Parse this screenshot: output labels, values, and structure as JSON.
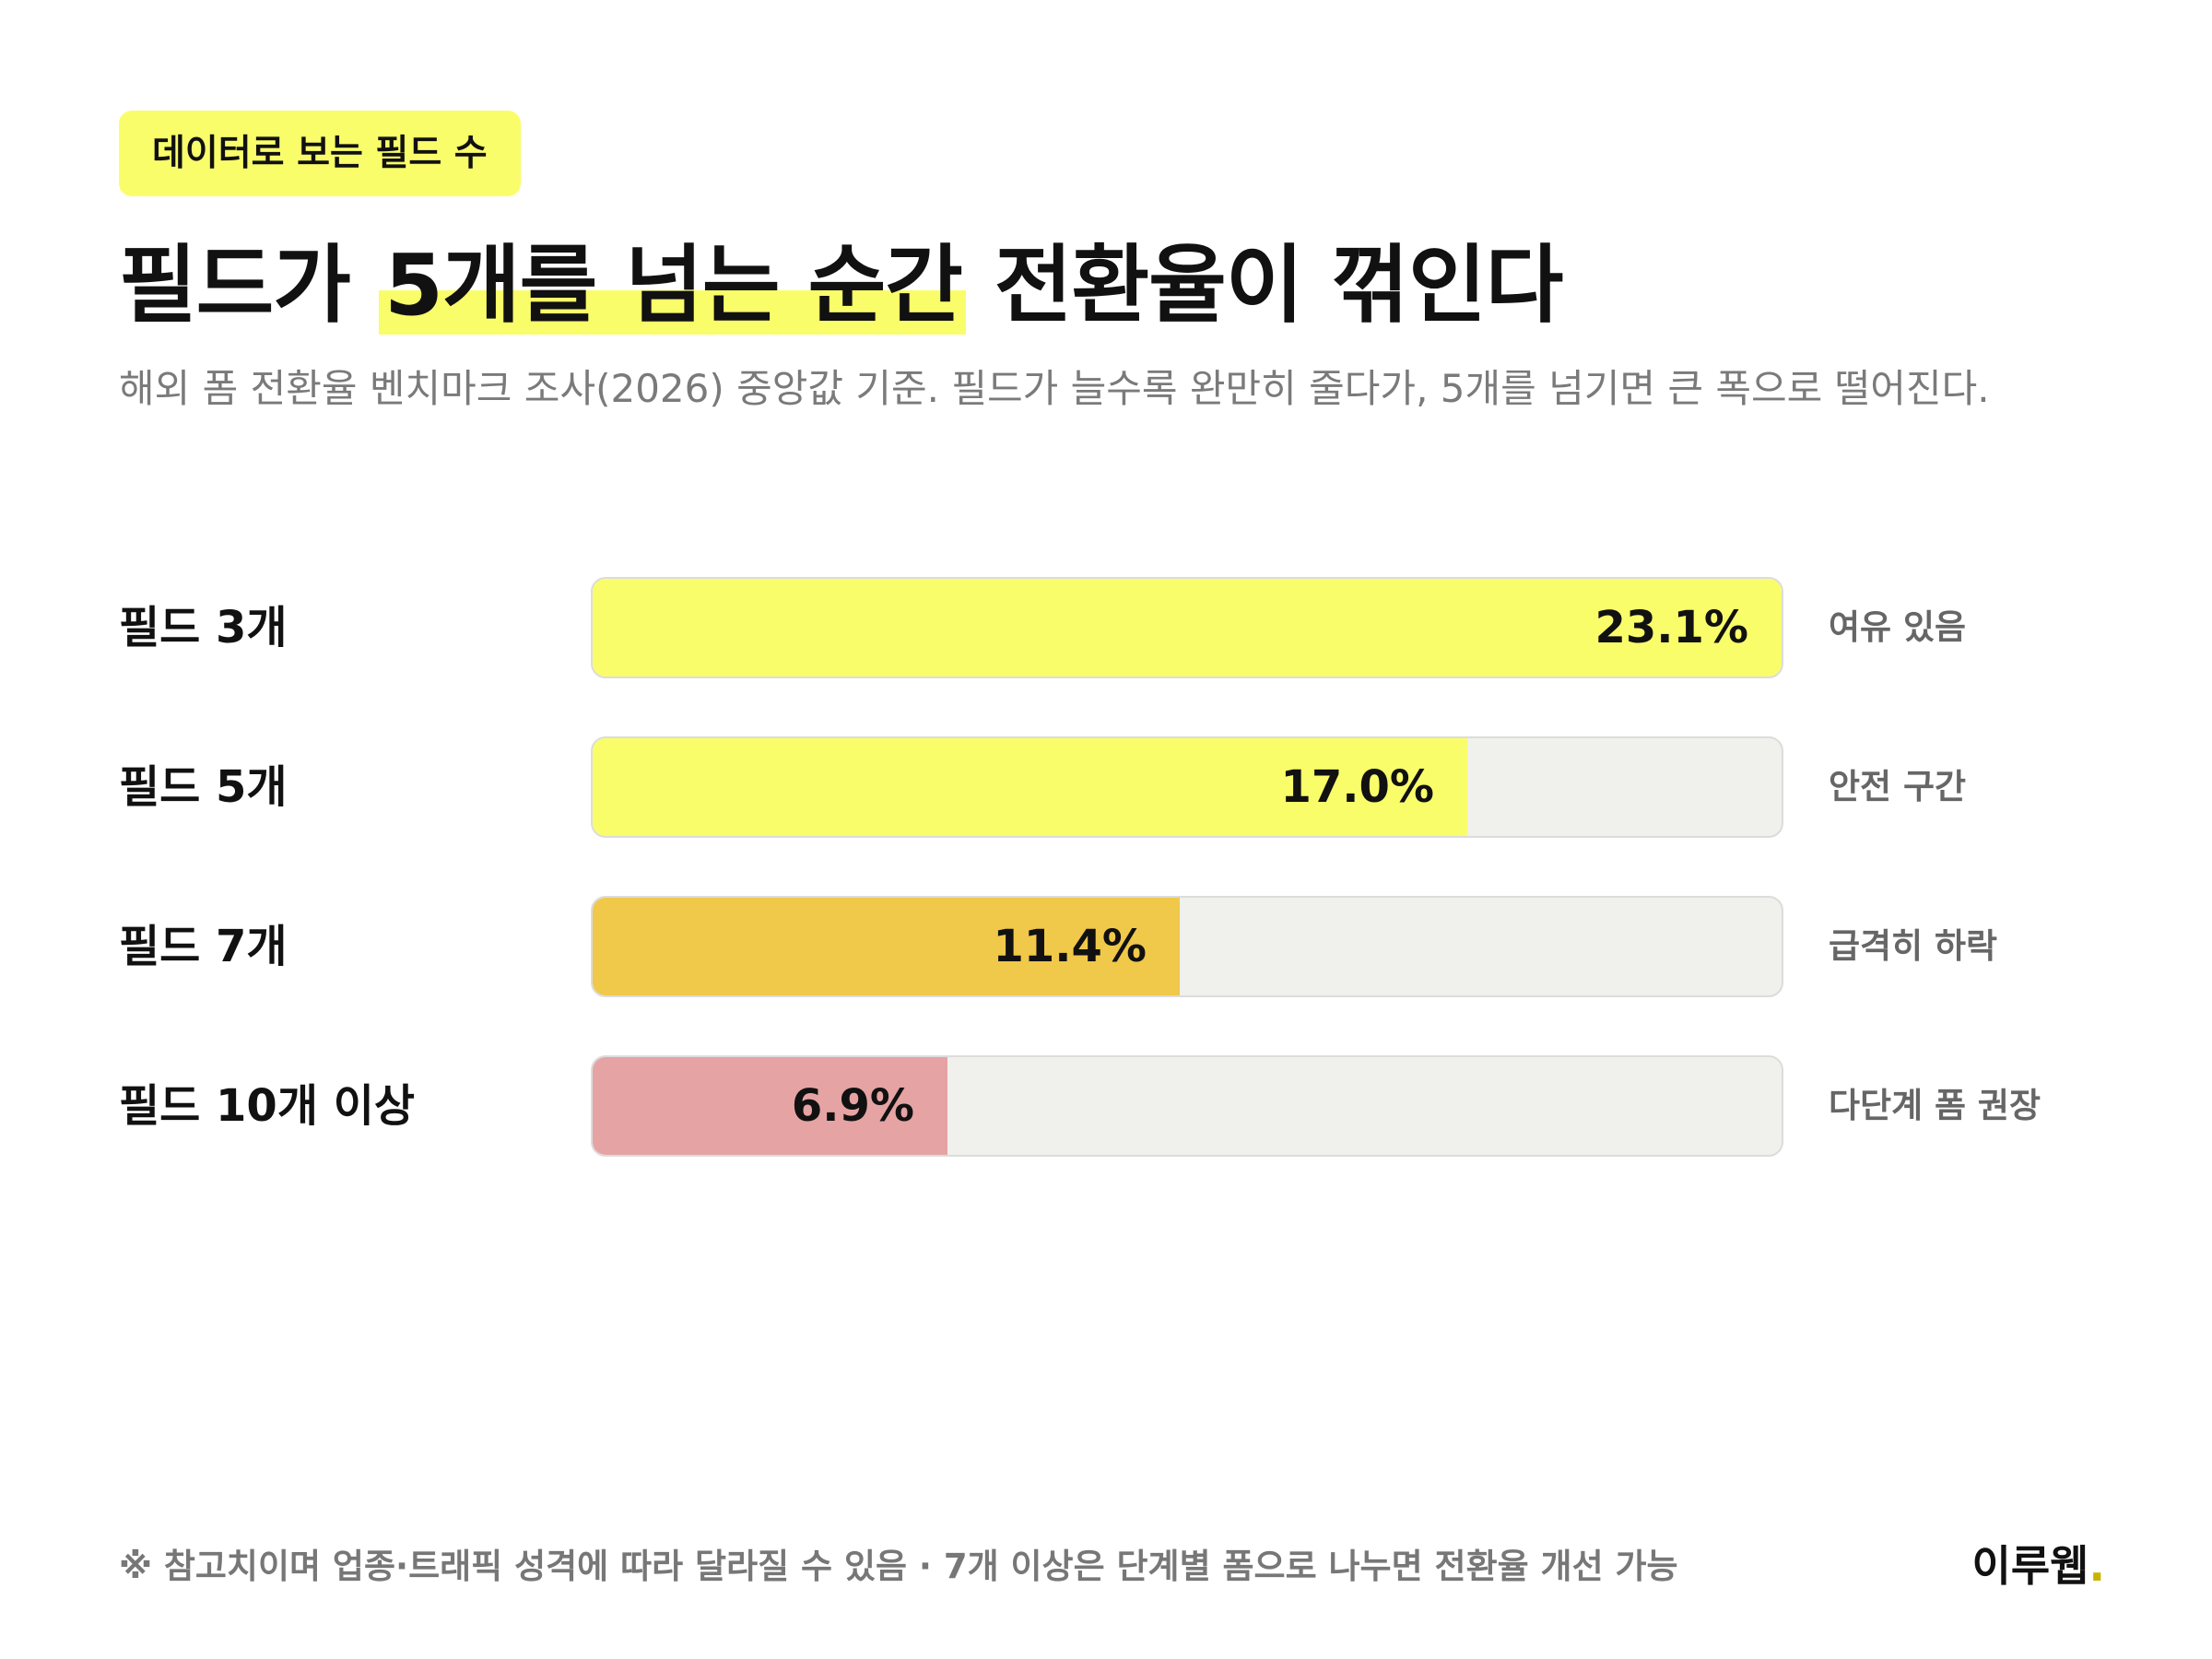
{
  "header": {
    "tag": "데이터로 보는 필드 수",
    "title_pre": "필드가 ",
    "title_highlight": "5개를 넘는 순간",
    "title_post": " 전환율이 꺾인다",
    "subtitle": "해외 폼 전환율 벤치마크 조사(2026) 중앙값 기준. 필드가 늘수록 완만히 줄다가, 5개를 넘기면 큰 폭으로 떨어진다."
  },
  "chart_data": {
    "type": "bar",
    "orientation": "horizontal",
    "categories": [
      "필드 3개",
      "필드 5개",
      "필드 7개",
      "필드 10개 이상"
    ],
    "values": [
      23.1,
      17.0,
      11.4,
      6.9
    ],
    "value_labels": [
      "23.1%",
      "17.0%",
      "11.4%",
      "6.9%"
    ],
    "notes": [
      "여유 있음",
      "안전 구간",
      "급격히 하락",
      "다단계 폼 권장"
    ],
    "colors": [
      "#fafd6a",
      "#fafd6a",
      "#f0c84a",
      "#e6a3a3"
    ],
    "xlim": [
      0,
      23.1
    ],
    "grid": false,
    "legend": "none"
  },
  "footer": {
    "note": "※ 참고치이며 업종·트래픽 성격에 따라 달라질 수 있음 · 7개 이상은 단계별 폼으로 나누면 전환율 개선 가능",
    "brand": "이루웹",
    "brand_dot": "."
  }
}
